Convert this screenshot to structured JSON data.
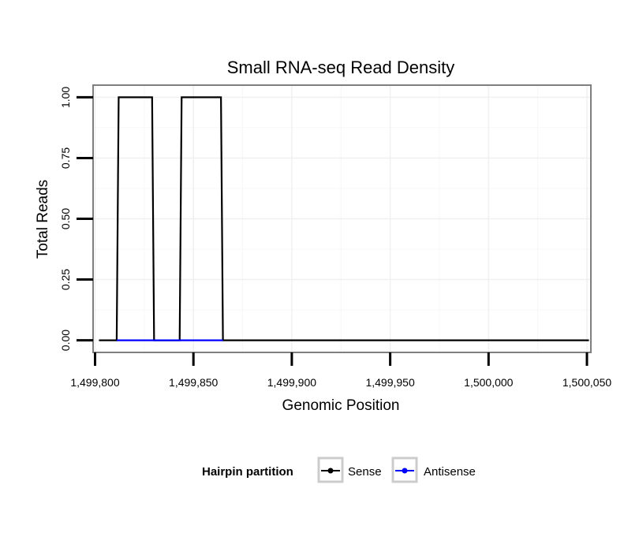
{
  "chart_data": {
    "type": "line",
    "title": "Small RNA-seq Read Density",
    "xlabel": "Genomic Position",
    "ylabel": "Total Reads",
    "xlim": [
      1499799,
      1500052
    ],
    "ylim": [
      -0.05,
      1.05
    ],
    "xticks": [
      1499800,
      1499850,
      1499900,
      1499950,
      1500000,
      1500050
    ],
    "xtick_labels": [
      "1,499,800",
      "1,499,850",
      "1,499,900",
      "1,499,950",
      "1,500,000",
      "1,500,050"
    ],
    "yticks": [
      0,
      0.25,
      0.5,
      0.75,
      1
    ],
    "ytick_labels": [
      "0.00",
      "0.25",
      "0.50",
      "0.75",
      "1.00"
    ],
    "grid": true,
    "legend": {
      "title": "Hairpin partition",
      "position": "bottom",
      "entries": [
        "Sense",
        "Antisense"
      ]
    },
    "series": [
      {
        "name": "Sense",
        "color": "#000000",
        "x": [
          1499802,
          1499811,
          1499812,
          1499829,
          1499830,
          1499843,
          1499844,
          1499864,
          1499865,
          1500051
        ],
        "y": [
          0,
          0,
          1,
          1,
          0,
          0,
          1,
          1,
          0,
          0
        ]
      },
      {
        "name": "Antisense",
        "color": "#0000ff",
        "x": [
          1499811,
          1499830,
          1499843,
          1499865
        ],
        "y": [
          0,
          0,
          0,
          0
        ]
      }
    ]
  }
}
